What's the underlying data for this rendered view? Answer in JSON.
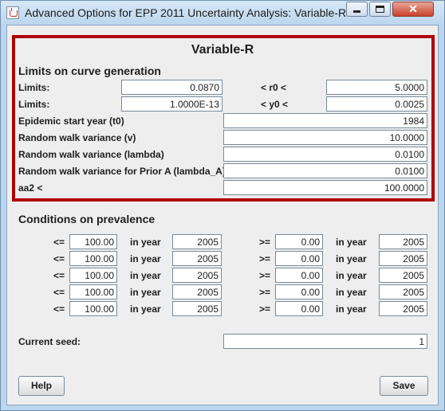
{
  "window": {
    "title": "Advanced Options for EPP 2011 Uncertainty Analysis: Variable-R",
    "close_glyph": "✕"
  },
  "panel": {
    "title": "Variable-R"
  },
  "curve_generation": {
    "heading": "Limits on curve generation",
    "limits_r0": {
      "label": "Limits:",
      "lower": "0.0870",
      "symbol": "< r0 <",
      "upper": "5.0000"
    },
    "limits_y0": {
      "label": "Limits:",
      "lower": "1.0000E-13",
      "symbol": "< y0 <",
      "upper": "0.0025"
    },
    "epidemic_start_year": {
      "label": "Epidemic start year (t0)",
      "value": "1984"
    },
    "rw_variance_v": {
      "label": "Random walk variance (v)",
      "value": "10.0000"
    },
    "rw_variance_lambda": {
      "label": "Random walk variance (lambda)",
      "value": "0.0100"
    },
    "rw_variance_prior_a": {
      "label": "Random walk variance for Prior A (lambda_A)",
      "value": "0.0100"
    },
    "aa2": {
      "label": "aa2 <",
      "value": "100.0000"
    }
  },
  "prevalence": {
    "heading": "Conditions on prevalence",
    "rows": [
      {
        "le_label": "<=",
        "le_value": "100.00",
        "le_year_label": "in year",
        "le_year": "2005",
        "ge_label": ">=",
        "ge_value": "0.00",
        "ge_year_label": "in year",
        "ge_year": "2005"
      },
      {
        "le_label": "<=",
        "le_value": "100.00",
        "le_year_label": "in year",
        "le_year": "2005",
        "ge_label": ">=",
        "ge_value": "0.00",
        "ge_year_label": "in year",
        "ge_year": "2005"
      },
      {
        "le_label": "<=",
        "le_value": "100.00",
        "le_year_label": "in year",
        "le_year": "2005",
        "ge_label": ">=",
        "ge_value": "0.00",
        "ge_year_label": "in year",
        "ge_year": "2005"
      },
      {
        "le_label": "<=",
        "le_value": "100.00",
        "le_year_label": "in year",
        "le_year": "2005",
        "ge_label": ">=",
        "ge_value": "0.00",
        "ge_year_label": "in year",
        "ge_year": "2005"
      },
      {
        "le_label": "<=",
        "le_value": "100.00",
        "le_year_label": "in year",
        "le_year": "2005",
        "ge_label": ">=",
        "ge_value": "0.00",
        "ge_year_label": "in year",
        "ge_year": "2005"
      }
    ]
  },
  "seed": {
    "label": "Current seed:",
    "value": "1"
  },
  "buttons": {
    "help": "Help",
    "save": "Save"
  },
  "colors": {
    "highlight_border": "#b00000",
    "titlebar": "#bcd6ee",
    "panel_bg": "#eeeeee"
  }
}
